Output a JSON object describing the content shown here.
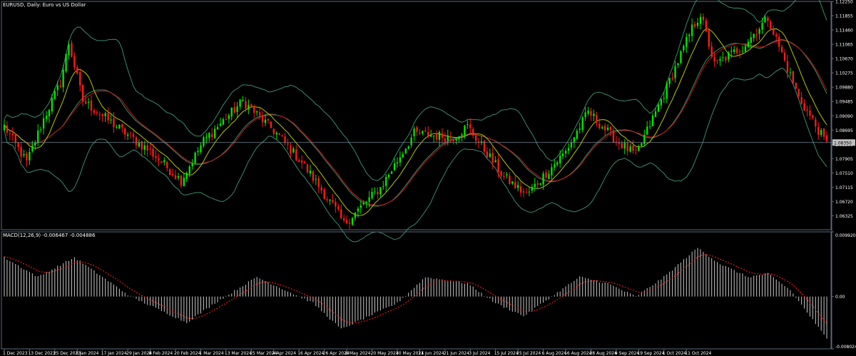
{
  "chart_data": [
    {
      "type": "candlestick",
      "title": "EURUSD, Daily:  Euro vs US Dollar",
      "indicators": [
        "Bollinger Bands",
        "Moving Averages"
      ],
      "ylim": [
        1.0594,
        1.1225
      ],
      "y_ticks": [
        "1.12250",
        "1.11855",
        "1.11460",
        "1.11065",
        "1.10670",
        "1.10275",
        "1.09880",
        "1.09485",
        "1.09090",
        "1.08695",
        "1.08300",
        "1.07905",
        "1.07510",
        "1.07115",
        "1.06720",
        "1.06325"
      ],
      "current_price": "1.08350",
      "keypoints": [
        {
          "i": 0,
          "close": 1.088
        },
        {
          "i": 8,
          "close": 1.078
        },
        {
          "i": 14,
          "close": 1.09
        },
        {
          "i": 20,
          "close": 1.1
        },
        {
          "i": 23,
          "close": 1.111
        },
        {
          "i": 28,
          "close": 1.095
        },
        {
          "i": 45,
          "close": 1.085
        },
        {
          "i": 52,
          "close": 1.081
        },
        {
          "i": 63,
          "close": 1.073
        },
        {
          "i": 71,
          "close": 1.084
        },
        {
          "i": 85,
          "close": 1.095
        },
        {
          "i": 97,
          "close": 1.086
        },
        {
          "i": 106,
          "close": 1.078
        },
        {
          "i": 118,
          "close": 1.065
        },
        {
          "i": 121,
          "close": 1.061
        },
        {
          "i": 134,
          "close": 1.071
        },
        {
          "i": 146,
          "close": 1.086
        },
        {
          "i": 160,
          "close": 1.085
        },
        {
          "i": 165,
          "close": 1.088
        },
        {
          "i": 178,
          "close": 1.074
        },
        {
          "i": 186,
          "close": 1.069
        },
        {
          "i": 200,
          "close": 1.081
        },
        {
          "i": 208,
          "close": 1.092
        },
        {
          "i": 218,
          "close": 1.084
        },
        {
          "i": 225,
          "close": 1.08
        },
        {
          "i": 235,
          "close": 1.097
        },
        {
          "i": 245,
          "close": 1.115
        },
        {
          "i": 248,
          "close": 1.119
        },
        {
          "i": 253,
          "close": 1.105
        },
        {
          "i": 263,
          "close": 1.11
        },
        {
          "i": 272,
          "close": 1.118
        },
        {
          "i": 276,
          "close": 1.11
        },
        {
          "i": 283,
          "close": 1.096
        },
        {
          "i": 293,
          "close": 1.083
        }
      ],
      "bar_count": 294,
      "colors": {
        "up": "#00e600",
        "down": "#ff1a1a",
        "ma_fast": "#b4c800",
        "ma_slow": "#c81414",
        "bands": "#3a8a6a",
        "grid": "#5a6a7a",
        "background": "#000000",
        "text": "#ffffff"
      }
    },
    {
      "type": "macd",
      "title": "MACD(12,26,9) -0.006467 -0.004886",
      "ylim": [
        -0.008024,
        0.00992
      ],
      "y_ticks": [
        "0.009920",
        "0.00",
        "-0.008024"
      ],
      "keypoints": [
        {
          "i": 0,
          "value": 0.006
        },
        {
          "i": 12,
          "value": 0.003
        },
        {
          "i": 25,
          "value": 0.006
        },
        {
          "i": 35,
          "value": 0.003
        },
        {
          "i": 45,
          "value": 0.0
        },
        {
          "i": 55,
          "value": -0.002
        },
        {
          "i": 65,
          "value": -0.004
        },
        {
          "i": 75,
          "value": -0.001
        },
        {
          "i": 90,
          "value": 0.003
        },
        {
          "i": 100,
          "value": 0.001
        },
        {
          "i": 110,
          "value": -0.001
        },
        {
          "i": 120,
          "value": -0.005
        },
        {
          "i": 130,
          "value": -0.003
        },
        {
          "i": 140,
          "value": -0.001
        },
        {
          "i": 150,
          "value": 0.003
        },
        {
          "i": 165,
          "value": 0.002
        },
        {
          "i": 175,
          "value": -0.001
        },
        {
          "i": 185,
          "value": -0.003
        },
        {
          "i": 195,
          "value": 0.0
        },
        {
          "i": 205,
          "value": 0.003
        },
        {
          "i": 215,
          "value": 0.002
        },
        {
          "i": 225,
          "value": 0.0
        },
        {
          "i": 235,
          "value": 0.003
        },
        {
          "i": 247,
          "value": 0.0075
        },
        {
          "i": 255,
          "value": 0.005
        },
        {
          "i": 265,
          "value": 0.003
        },
        {
          "i": 272,
          "value": 0.0035
        },
        {
          "i": 280,
          "value": 0.001
        },
        {
          "i": 287,
          "value": -0.003
        },
        {
          "i": 293,
          "value": -0.0065
        }
      ],
      "colors": {
        "histogram": "#c8c8c8",
        "signal": "#ff2020"
      }
    }
  ],
  "x_ticks": [
    {
      "label": "1 Dec 2023",
      "i": 0
    },
    {
      "label": "13 Dec 2023",
      "i": 9
    },
    {
      "label": "25 Dec 2023",
      "i": 18
    },
    {
      "label": "5 Jan 2024",
      "i": 26
    },
    {
      "label": "17 Jan 2024",
      "i": 35
    },
    {
      "label": "29 Jan 2024",
      "i": 44
    },
    {
      "label": "8 Feb 2024",
      "i": 52
    },
    {
      "label": "20 Feb 2024",
      "i": 61
    },
    {
      "label": "1 Mar 2024",
      "i": 70
    },
    {
      "label": "13 Mar 2024",
      "i": 79
    },
    {
      "label": "25 Mar 2024",
      "i": 88
    },
    {
      "label": "4 Apr 2024",
      "i": 96
    },
    {
      "label": "16 Apr 2024",
      "i": 105
    },
    {
      "label": "26 Apr 2024",
      "i": 114
    },
    {
      "label": "8 May 2024",
      "i": 122
    },
    {
      "label": "20 May 2024",
      "i": 131
    },
    {
      "label": "30 May 2024",
      "i": 140
    },
    {
      "label": "11 Jun 2024",
      "i": 148
    },
    {
      "label": "21 Jun 2024",
      "i": 157
    },
    {
      "label": "3 Jul 2024",
      "i": 166
    },
    {
      "label": "15 Jul 2024",
      "i": 175
    },
    {
      "label": "25 Jul 2024",
      "i": 183
    },
    {
      "label": "6 Aug 2024",
      "i": 192
    },
    {
      "label": "16 Aug 2024",
      "i": 200
    },
    {
      "label": "28 Aug 2024",
      "i": 209
    },
    {
      "label": "9 Sep 2024",
      "i": 218
    },
    {
      "label": "19 Sep 2024",
      "i": 226
    },
    {
      "label": "1 Oct 2024",
      "i": 235
    },
    {
      "label": "11 Oct 2024",
      "i": 243
    }
  ]
}
